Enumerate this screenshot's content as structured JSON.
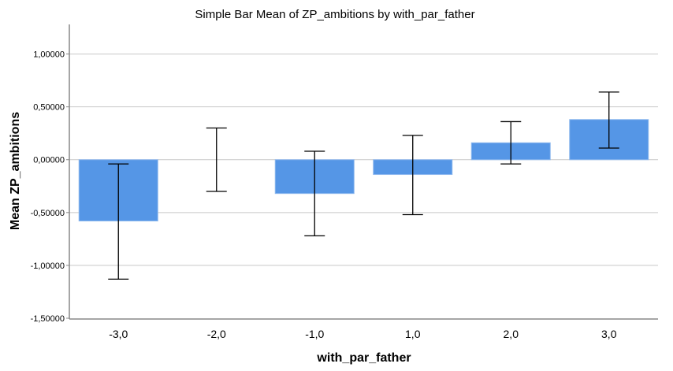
{
  "chart_data": {
    "type": "bar",
    "title": "Simple Bar Mean of ZP_ambitions by with_par_father",
    "xlabel": "with_par_father",
    "ylabel": "Mean ZP_ambitions",
    "categories": [
      "-3,0",
      "-2,0",
      "-1,0",
      "1,0",
      "2,0",
      "3,0"
    ],
    "values": [
      -0.58,
      0.0,
      -0.32,
      -0.14,
      0.16,
      0.38
    ],
    "error_low": [
      -1.13,
      -0.3,
      -0.72,
      -0.52,
      -0.04,
      0.11
    ],
    "error_high": [
      -0.04,
      0.3,
      0.08,
      0.23,
      0.36,
      0.64
    ],
    "ylim": [
      -1.5,
      1.28
    ],
    "yticks": [
      -1.5,
      -1.0,
      -0.5,
      0.0,
      0.5,
      1.0
    ],
    "ytick_labels": [
      "-1,50000",
      "-1,00000",
      "-0,50000",
      "0,00000",
      "0,50000",
      "1,00000"
    ],
    "grid": true,
    "bar_color": "#5596e6"
  }
}
